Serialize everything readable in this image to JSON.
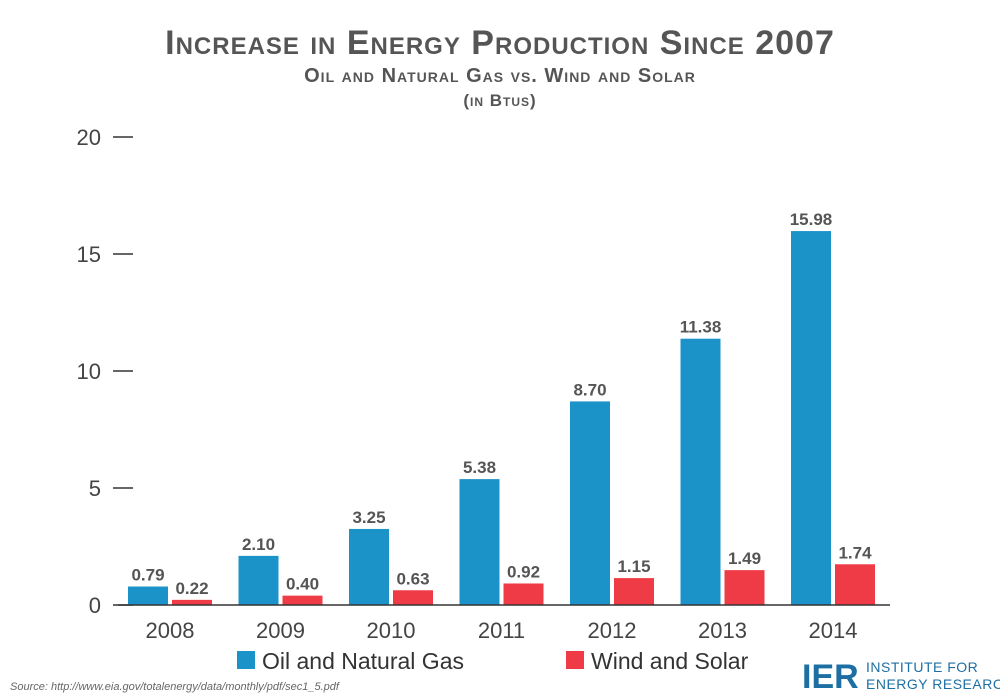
{
  "chart_data": {
    "type": "bar",
    "title": "Increase in Energy Production Since 2007",
    "subtitle": "Oil and Natural Gas vs. Wind and Solar",
    "unit_note": "(in Btus)",
    "xlabel": "",
    "ylabel": "",
    "categories": [
      "2008",
      "2009",
      "2010",
      "2011",
      "2012",
      "2013",
      "2014"
    ],
    "series": [
      {
        "name": "Oil and Natural Gas",
        "color": "#1b93c8",
        "values": [
          0.79,
          2.1,
          3.25,
          5.38,
          8.7,
          11.38,
          15.98
        ],
        "labels": [
          "0.79",
          "2.10",
          "3.25",
          "5.38",
          "8.70",
          "11.38",
          "15.98"
        ]
      },
      {
        "name": "Wind and Solar",
        "color": "#ee3b45",
        "values": [
          0.22,
          0.4,
          0.63,
          0.92,
          1.15,
          1.49,
          1.74
        ],
        "labels": [
          "0.22",
          "0.40",
          "0.63",
          "0.92",
          "1.15",
          "1.49",
          "1.74"
        ]
      }
    ],
    "ylim": [
      0,
      20
    ],
    "yticks": [
      "0",
      "5",
      "10",
      "15",
      "20"
    ],
    "grid": false,
    "legend_position": "bottom"
  },
  "source": "Source: http://www.eia.gov/totalenergy/data/monthly/pdf/sec1_5.pdf",
  "logo": {
    "mark": "IER",
    "line1": "INSTITUTE FOR",
    "line2": "ENERGY RESEARCH"
  }
}
